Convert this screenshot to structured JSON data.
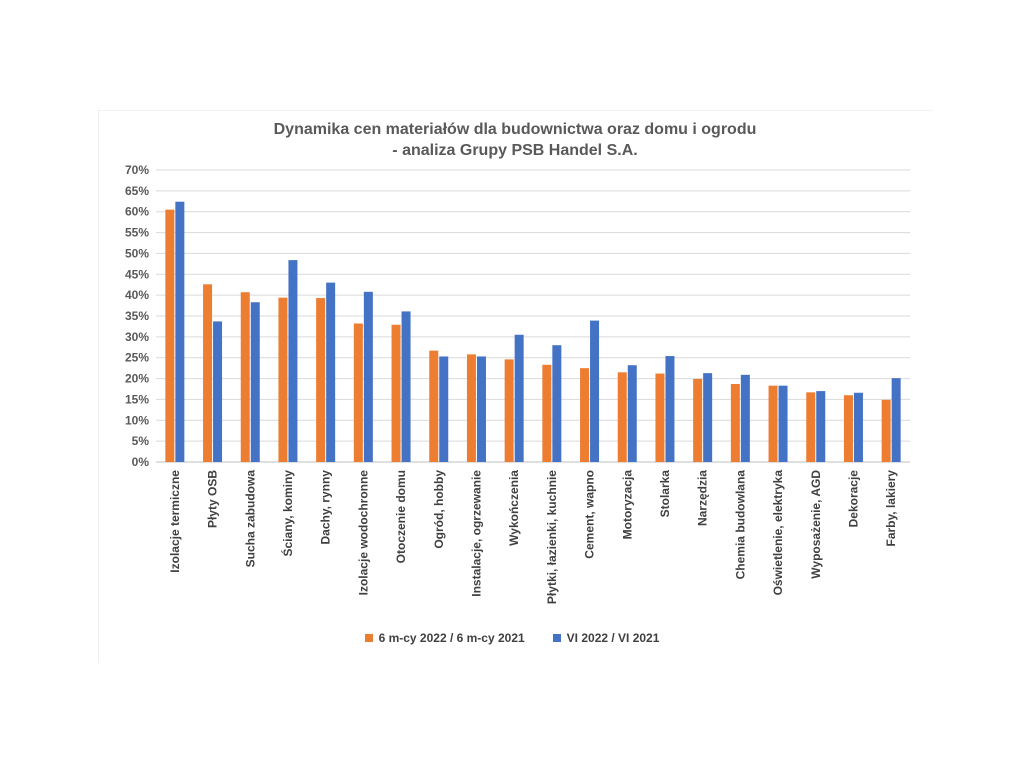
{
  "chart_data": {
    "type": "bar",
    "title": "Dynamika cen materiałów dla budownictwa oraz domu i ogrodu",
    "subtitle": "- analiza Grupy PSB Handel S.A.",
    "categories": [
      "Izolacje termiczne",
      "Płyty OSB",
      "Sucha zabudowa",
      "Ściany, kominy",
      "Dachy, rynny",
      "Izolacje wodochronne",
      "Otoczenie domu",
      "Ogród, hobby",
      "Instalacje, ogrzewanie",
      "Wykończenia",
      "Płytki, łazienki, kuchnie",
      "Cement, wapno",
      "Motoryzacja",
      "Stolarka",
      "Narzędzia",
      "Chemia budowlana",
      "Oświetlenie, elektryka",
      "Wyposażenie, AGD",
      "Dekoracje",
      "Farby, lakiery"
    ],
    "series": [
      {
        "name": "6 m-cy 2022 / 6 m-cy 2021",
        "color": "#ED7D31",
        "values": [
          60.5,
          42.6,
          40.7,
          39.4,
          39.3,
          33.2,
          32.9,
          26.7,
          25.8,
          24.6,
          23.3,
          22.5,
          21.5,
          21.2,
          19.9,
          18.7,
          18.3,
          16.7,
          16.0,
          14.9
        ]
      },
      {
        "name": "VI 2022 / VI 2021",
        "color": "#4472C4",
        "values": [
          62.4,
          33.7,
          38.3,
          48.4,
          43.0,
          40.8,
          36.1,
          25.3,
          25.3,
          30.5,
          28.0,
          33.9,
          23.2,
          25.4,
          21.3,
          20.9,
          18.3,
          17.0,
          16.6,
          20.1
        ]
      }
    ],
    "yticks": [
      "0%",
      "5%",
      "10%",
      "15%",
      "20%",
      "25%",
      "30%",
      "35%",
      "40%",
      "45%",
      "50%",
      "55%",
      "60%",
      "65%",
      "70%"
    ],
    "ylim": [
      0,
      70
    ],
    "grid": true,
    "legend": "bottom"
  }
}
